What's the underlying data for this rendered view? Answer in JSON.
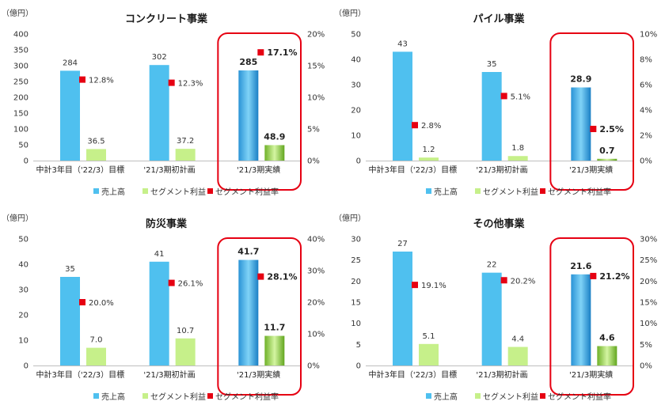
{
  "chart_data": [
    {
      "type": "bar",
      "title": "コンクリート事業",
      "ylabel": "（億円）",
      "ylim": [
        0,
        400
      ],
      "y_ticks": [
        0,
        50,
        100,
        150,
        200,
        250,
        300,
        350,
        400
      ],
      "y2lim": [
        0,
        20
      ],
      "y2_ticks": [
        "0%",
        "5%",
        "10%",
        "15%",
        "20%"
      ],
      "categories": [
        "中計3年目（'22/3）目標",
        "'21/3期初計画",
        "'21/3期実績"
      ],
      "series": [
        {
          "name": "売上高",
          "values": [
            284,
            302,
            285
          ],
          "labels": [
            "284",
            "302",
            "285"
          ]
        },
        {
          "name": "セグメント利益",
          "values": [
            36.5,
            37.2,
            48.9
          ],
          "labels": [
            "36.5",
            "37.2",
            "48.9"
          ]
        },
        {
          "name": "セグメント利益率",
          "values": [
            12.8,
            12.3,
            17.1
          ],
          "labels": [
            "12.8%",
            "12.3%",
            "17.1%"
          ],
          "axis": "right"
        }
      ],
      "highlight": "'21/3期実績",
      "legend_position": "bottom"
    },
    {
      "type": "bar",
      "title": "パイル事業",
      "ylabel": "（億円）",
      "ylim": [
        0,
        50
      ],
      "y_ticks": [
        0,
        10,
        20,
        30,
        40,
        50
      ],
      "y2lim": [
        0,
        10
      ],
      "y2_ticks": [
        "0%",
        "2%",
        "4%",
        "6%",
        "8%",
        "10%"
      ],
      "categories": [
        "中計3年目（'22/3）目標",
        "'21/3期初計画",
        "'21/3期実績"
      ],
      "series": [
        {
          "name": "売上高",
          "values": [
            43,
            35,
            28.9
          ],
          "labels": [
            "43",
            "35",
            "28.9"
          ]
        },
        {
          "name": "セグメント利益",
          "values": [
            1.2,
            1.8,
            0.7
          ],
          "labels": [
            "1.2",
            "1.8",
            "0.7"
          ]
        },
        {
          "name": "セグメント利益率",
          "values": [
            2.8,
            5.1,
            2.5
          ],
          "labels": [
            "2.8%",
            "5.1%",
            "2.5%"
          ],
          "axis": "right"
        }
      ],
      "highlight": "'21/3期実績",
      "legend_position": "bottom"
    },
    {
      "type": "bar",
      "title": "防災事業",
      "ylabel": "（億円）",
      "ylim": [
        0,
        50
      ],
      "y_ticks": [
        0,
        10,
        20,
        30,
        40,
        50
      ],
      "y2lim": [
        0,
        40
      ],
      "y2_ticks": [
        "0%",
        "10%",
        "20%",
        "30%",
        "40%"
      ],
      "categories": [
        "中計3年目（'22/3）目標",
        "'21/3期初計画",
        "'21/3期実績"
      ],
      "series": [
        {
          "name": "売上高",
          "values": [
            35,
            41,
            41.7
          ],
          "labels": [
            "35",
            "41",
            "41.7"
          ]
        },
        {
          "name": "セグメント利益",
          "values": [
            7.0,
            10.7,
            11.7
          ],
          "labels": [
            "7.0",
            "10.7",
            "11.7"
          ]
        },
        {
          "name": "セグメント利益率",
          "values": [
            20.0,
            26.1,
            28.1
          ],
          "labels": [
            "20.0%",
            "26.1%",
            "28.1%"
          ],
          "axis": "right"
        }
      ],
      "highlight": "'21/3期実績",
      "legend_position": "bottom"
    },
    {
      "type": "bar",
      "title": "その他事業",
      "ylabel": "（億円）",
      "ylim": [
        0,
        30
      ],
      "y_ticks": [
        0,
        5,
        10,
        15,
        20,
        25,
        30
      ],
      "y2lim": [
        0,
        30
      ],
      "y2_ticks": [
        "0%",
        "5%",
        "10%",
        "15%",
        "20%",
        "25%",
        "30%"
      ],
      "categories": [
        "中計3年目（'22/3）目標",
        "'21/3期初計画",
        "'21/3期実績"
      ],
      "series": [
        {
          "name": "売上高",
          "values": [
            27,
            22,
            21.6
          ],
          "labels": [
            "27",
            "22",
            "21.6"
          ]
        },
        {
          "name": "セグメント利益",
          "values": [
            5.1,
            4.4,
            4.6
          ],
          "labels": [
            "5.1",
            "4.4",
            "4.6"
          ]
        },
        {
          "name": "セグメント利益率",
          "values": [
            19.1,
            20.2,
            21.2
          ],
          "labels": [
            "19.1%",
            "20.2%",
            "21.2%"
          ],
          "axis": "right"
        }
      ],
      "highlight": "'21/3期実績",
      "legend_position": "bottom"
    }
  ],
  "colors": {
    "sales": "#4fc0ef",
    "sales_dark": "#1e86c9",
    "profit": "#c6f08a",
    "profit_dark": "#72b52a",
    "rate": "#e60012",
    "highlight_border": "#e60012"
  }
}
